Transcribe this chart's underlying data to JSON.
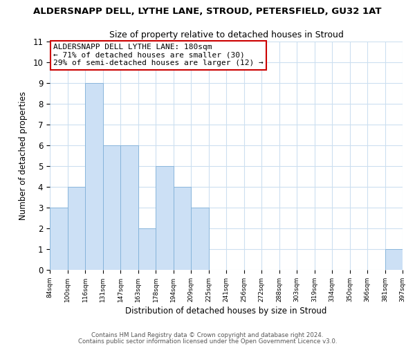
{
  "title": "ALDERSNAPP DELL, LYTHE LANE, STROUD, PETERSFIELD, GU32 1AT",
  "subtitle": "Size of property relative to detached houses in Stroud",
  "xlabel": "Distribution of detached houses by size in Stroud",
  "ylabel": "Number of detached properties",
  "bin_labels": [
    "84sqm",
    "100sqm",
    "116sqm",
    "131sqm",
    "147sqm",
    "163sqm",
    "178sqm",
    "194sqm",
    "209sqm",
    "225sqm",
    "241sqm",
    "256sqm",
    "272sqm",
    "288sqm",
    "303sqm",
    "319sqm",
    "334sqm",
    "350sqm",
    "366sqm",
    "381sqm",
    "397sqm"
  ],
  "bar_values": [
    3,
    4,
    9,
    6,
    6,
    2,
    5,
    4,
    3,
    0,
    0,
    0,
    0,
    0,
    0,
    0,
    0,
    0,
    0,
    1
  ],
  "normal_bar_color": "#cce0f5",
  "bar_edge_color": "#7fb0d8",
  "ylim": [
    0,
    11
  ],
  "yticks": [
    0,
    1,
    2,
    3,
    4,
    5,
    6,
    7,
    8,
    9,
    10,
    11
  ],
  "annotation_title": "ALDERSNAPP DELL LYTHE LANE: 180sqm",
  "annotation_line1": "← 71% of detached houses are smaller (30)",
  "annotation_line2": "29% of semi-detached houses are larger (12) →",
  "annotation_box_color": "#ffffff",
  "annotation_box_edge": "#cc0000",
  "footer1": "Contains HM Land Registry data © Crown copyright and database right 2024.",
  "footer2": "Contains public sector information licensed under the Open Government Licence v3.0.",
  "background_color": "#ffffff",
  "grid_color": "#ccdff0"
}
